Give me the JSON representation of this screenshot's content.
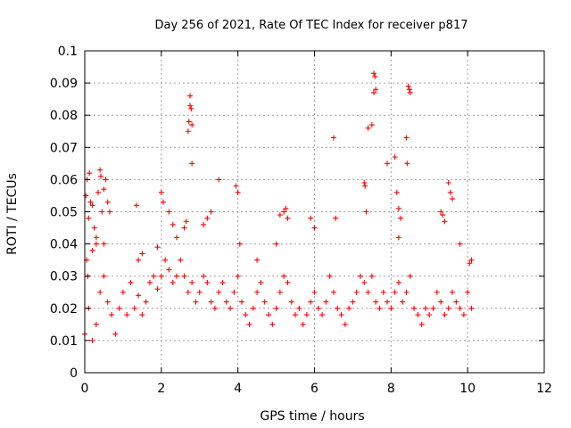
{
  "chart_data": {
    "type": "scatter",
    "title": "Day 256 of 2021, Rate Of TEC Index for receiver p817",
    "xlabel": "GPS time / hours",
    "ylabel": "ROTI / TECUs",
    "xlim": [
      0,
      12
    ],
    "ylim": [
      0,
      0.1
    ],
    "x_ticks": [
      "0",
      "2",
      "4",
      "6",
      "8",
      "10",
      "12"
    ],
    "y_ticks": [
      "0",
      "0.01",
      "0.02",
      "0.03",
      "0.04",
      "0.05",
      "0.06",
      "0.07",
      "0.08",
      "0.09",
      "0.1"
    ],
    "grid": true,
    "marker": "plus",
    "color": "#ff0000",
    "series": [
      {
        "points": [
          [
            0.03,
            0.055
          ],
          [
            0.06,
            0.06
          ],
          [
            0.1,
            0.048
          ],
          [
            0.12,
            0.062
          ],
          [
            0.15,
            0.053
          ],
          [
            0.2,
            0.052
          ],
          [
            0.25,
            0.045
          ],
          [
            0.3,
            0.042
          ],
          [
            0.35,
            0.056
          ],
          [
            0.4,
            0.063
          ],
          [
            0.42,
            0.061
          ],
          [
            0.45,
            0.05
          ],
          [
            0.5,
            0.057
          ],
          [
            0.55,
            0.06
          ],
          [
            0.6,
            0.053
          ],
          [
            0.65,
            0.05
          ],
          [
            0.05,
            0.035
          ],
          [
            0.08,
            0.03
          ],
          [
            0.2,
            0.038
          ],
          [
            0.3,
            0.04
          ],
          [
            0.5,
            0.04
          ],
          [
            1.4,
            0.035
          ],
          [
            1.5,
            0.037
          ],
          [
            1.35,
            0.052
          ],
          [
            1.9,
            0.039
          ],
          [
            2.0,
            0.056
          ],
          [
            2.05,
            0.053
          ],
          [
            2.2,
            0.05
          ],
          [
            2.3,
            0.046
          ],
          [
            2.4,
            0.042
          ],
          [
            2.6,
            0.045
          ],
          [
            2.65,
            0.047
          ],
          [
            2.7,
            0.075
          ],
          [
            2.72,
            0.078
          ],
          [
            2.75,
            0.083
          ],
          [
            2.75,
            0.086
          ],
          [
            2.78,
            0.082
          ],
          [
            2.8,
            0.077
          ],
          [
            2.8,
            0.065
          ],
          [
            3.1,
            0.046
          ],
          [
            3.2,
            0.048
          ],
          [
            3.3,
            0.05
          ],
          [
            3.5,
            0.06
          ],
          [
            3.95,
            0.058
          ],
          [
            4.0,
            0.056
          ],
          [
            4.05,
            0.04
          ],
          [
            5.1,
            0.049
          ],
          [
            5.2,
            0.05
          ],
          [
            5.25,
            0.051
          ],
          [
            5.3,
            0.048
          ],
          [
            5.0,
            0.04
          ],
          [
            4.5,
            0.035
          ],
          [
            5.9,
            0.048
          ],
          [
            6.0,
            0.045
          ],
          [
            6.5,
            0.073
          ],
          [
            6.55,
            0.048
          ],
          [
            7.3,
            0.059
          ],
          [
            7.32,
            0.058
          ],
          [
            7.35,
            0.05
          ],
          [
            7.4,
            0.076
          ],
          [
            7.5,
            0.077
          ],
          [
            7.55,
            0.093
          ],
          [
            7.58,
            0.092
          ],
          [
            7.6,
            0.088
          ],
          [
            7.55,
            0.087
          ],
          [
            7.9,
            0.065
          ],
          [
            8.1,
            0.067
          ],
          [
            8.15,
            0.056
          ],
          [
            8.2,
            0.051
          ],
          [
            8.25,
            0.048
          ],
          [
            8.2,
            0.042
          ],
          [
            8.45,
            0.089
          ],
          [
            8.5,
            0.087
          ],
          [
            8.48,
            0.088
          ],
          [
            8.4,
            0.073
          ],
          [
            8.42,
            0.065
          ],
          [
            9.3,
            0.05
          ],
          [
            9.35,
            0.049
          ],
          [
            9.4,
            0.047
          ],
          [
            9.5,
            0.059
          ],
          [
            9.55,
            0.056
          ],
          [
            9.6,
            0.054
          ],
          [
            9.8,
            0.04
          ],
          [
            10.05,
            0.034
          ],
          [
            10.1,
            0.035
          ],
          [
            0.0,
            0.012
          ],
          [
            0.1,
            0.02
          ],
          [
            0.2,
            0.01
          ],
          [
            0.3,
            0.015
          ],
          [
            0.4,
            0.025
          ],
          [
            0.5,
            0.03
          ],
          [
            0.6,
            0.022
          ],
          [
            0.7,
            0.018
          ],
          [
            0.8,
            0.012
          ],
          [
            0.9,
            0.02
          ],
          [
            1.0,
            0.025
          ],
          [
            1.1,
            0.018
          ],
          [
            1.2,
            0.028
          ],
          [
            1.3,
            0.02
          ],
          [
            1.4,
            0.024
          ],
          [
            1.5,
            0.018
          ],
          [
            1.6,
            0.022
          ],
          [
            1.7,
            0.028
          ],
          [
            1.8,
            0.03
          ],
          [
            1.9,
            0.026
          ],
          [
            2.0,
            0.03
          ],
          [
            2.1,
            0.035
          ],
          [
            2.2,
            0.032
          ],
          [
            2.3,
            0.028
          ],
          [
            2.4,
            0.03
          ],
          [
            2.5,
            0.035
          ],
          [
            2.6,
            0.03
          ],
          [
            2.7,
            0.025
          ],
          [
            2.8,
            0.028
          ],
          [
            2.9,
            0.022
          ],
          [
            3.0,
            0.025
          ],
          [
            3.1,
            0.03
          ],
          [
            3.2,
            0.028
          ],
          [
            3.3,
            0.022
          ],
          [
            3.4,
            0.02
          ],
          [
            3.5,
            0.025
          ],
          [
            3.6,
            0.028
          ],
          [
            3.7,
            0.022
          ],
          [
            3.8,
            0.02
          ],
          [
            3.9,
            0.025
          ],
          [
            4.0,
            0.03
          ],
          [
            4.1,
            0.022
          ],
          [
            4.2,
            0.018
          ],
          [
            4.3,
            0.015
          ],
          [
            4.4,
            0.02
          ],
          [
            4.5,
            0.025
          ],
          [
            4.6,
            0.028
          ],
          [
            4.7,
            0.022
          ],
          [
            4.8,
            0.018
          ],
          [
            4.9,
            0.015
          ],
          [
            5.0,
            0.02
          ],
          [
            5.1,
            0.025
          ],
          [
            5.2,
            0.03
          ],
          [
            5.3,
            0.028
          ],
          [
            5.4,
            0.022
          ],
          [
            5.5,
            0.018
          ],
          [
            5.6,
            0.02
          ],
          [
            5.7,
            0.015
          ],
          [
            5.8,
            0.018
          ],
          [
            5.9,
            0.022
          ],
          [
            6.0,
            0.025
          ],
          [
            6.1,
            0.02
          ],
          [
            6.2,
            0.018
          ],
          [
            6.3,
            0.022
          ],
          [
            6.4,
            0.03
          ],
          [
            6.5,
            0.025
          ],
          [
            6.6,
            0.02
          ],
          [
            6.7,
            0.018
          ],
          [
            6.8,
            0.015
          ],
          [
            6.9,
            0.02
          ],
          [
            7.0,
            0.022
          ],
          [
            7.1,
            0.025
          ],
          [
            7.2,
            0.03
          ],
          [
            7.3,
            0.028
          ],
          [
            7.4,
            0.025
          ],
          [
            7.5,
            0.03
          ],
          [
            7.6,
            0.022
          ],
          [
            7.7,
            0.02
          ],
          [
            7.8,
            0.025
          ],
          [
            7.9,
            0.022
          ],
          [
            8.0,
            0.02
          ],
          [
            8.1,
            0.025
          ],
          [
            8.2,
            0.028
          ],
          [
            8.3,
            0.022
          ],
          [
            8.4,
            0.025
          ],
          [
            8.5,
            0.03
          ],
          [
            8.6,
            0.02
          ],
          [
            8.7,
            0.018
          ],
          [
            8.8,
            0.015
          ],
          [
            8.9,
            0.02
          ],
          [
            9.0,
            0.018
          ],
          [
            9.1,
            0.02
          ],
          [
            9.2,
            0.025
          ],
          [
            9.3,
            0.022
          ],
          [
            9.4,
            0.018
          ],
          [
            9.5,
            0.02
          ],
          [
            9.6,
            0.025
          ],
          [
            9.7,
            0.022
          ],
          [
            9.8,
            0.02
          ],
          [
            9.9,
            0.018
          ],
          [
            10.0,
            0.025
          ],
          [
            10.1,
            0.02
          ]
        ]
      }
    ]
  }
}
